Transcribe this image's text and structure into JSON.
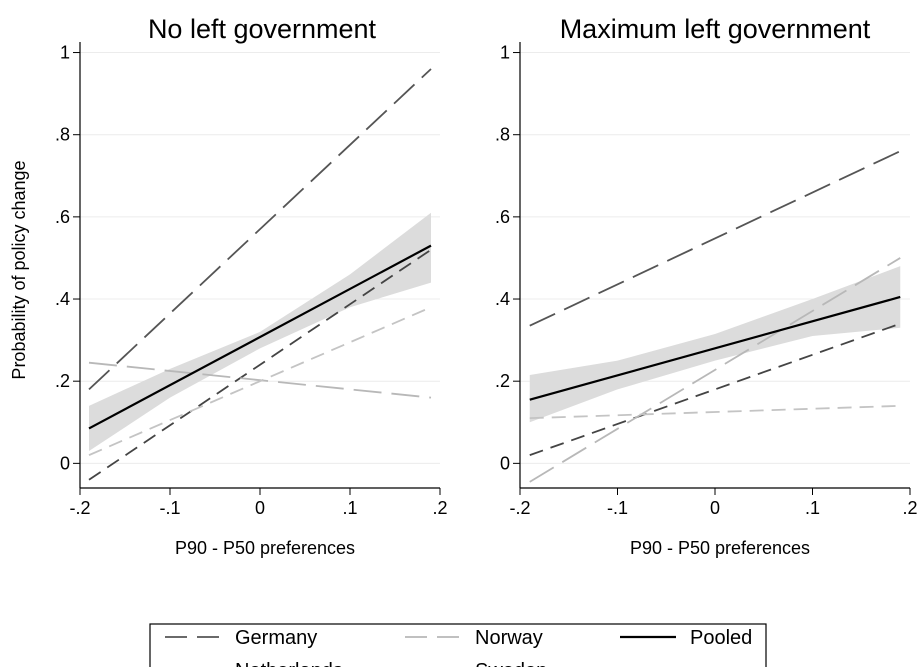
{
  "chart_data": [
    {
      "type": "line",
      "title": "No left government",
      "xlabel": "P90 - P50 preferences",
      "ylabel": "Probability of policy change",
      "xlim": [
        -0.2,
        0.2
      ],
      "ylim": [
        -0.06,
        1.05
      ],
      "xticks": [
        "-.2",
        "-.1",
        "0",
        ".1",
        ".2"
      ],
      "yticks": [
        "0",
        ".2",
        ".4",
        ".6",
        ".8",
        "1"
      ],
      "grid": true,
      "series": [
        {
          "name": "Germany",
          "x": [
            -0.19,
            0.19
          ],
          "y": [
            0.18,
            0.96
          ]
        },
        {
          "name": "Netherlands",
          "x": [
            -0.19,
            0.19
          ],
          "y": [
            -0.04,
            0.52
          ]
        },
        {
          "name": "Norway",
          "x": [
            -0.19,
            0.19
          ],
          "y": [
            0.245,
            0.16
          ]
        },
        {
          "name": "Sweden",
          "x": [
            -0.19,
            0.19
          ],
          "y": [
            0.02,
            0.38
          ]
        },
        {
          "name": "Pooled",
          "x": [
            -0.19,
            0.19
          ],
          "y": [
            0.085,
            0.53
          ]
        }
      ],
      "confidence_band": {
        "x": [
          -0.19,
          -0.1,
          0,
          0.1,
          0.19
        ],
        "lower": [
          0.03,
          0.16,
          0.28,
          0.38,
          0.44
        ],
        "upper": [
          0.14,
          0.23,
          0.32,
          0.46,
          0.61
        ]
      }
    },
    {
      "type": "line",
      "title": "Maximum left government",
      "xlabel": "P90 - P50 preferences",
      "ylabel": "",
      "xlim": [
        -0.2,
        0.2
      ],
      "ylim": [
        -0.06,
        1.05
      ],
      "xticks": [
        "-.2",
        "-.1",
        "0",
        ".1",
        ".2"
      ],
      "yticks": [
        "0",
        ".2",
        ".4",
        ".6",
        ".8",
        "1"
      ],
      "grid": true,
      "series": [
        {
          "name": "Germany",
          "x": [
            -0.19,
            0.19
          ],
          "y": [
            0.335,
            0.76
          ]
        },
        {
          "name": "Netherlands",
          "x": [
            -0.19,
            0.19
          ],
          "y": [
            0.02,
            0.34
          ]
        },
        {
          "name": "Norway",
          "x": [
            -0.19,
            0.19
          ],
          "y": [
            -0.045,
            0.5
          ]
        },
        {
          "name": "Sweden",
          "x": [
            -0.19,
            0.19
          ],
          "y": [
            0.11,
            0.14
          ]
        },
        {
          "name": "Pooled",
          "x": [
            -0.19,
            0.19
          ],
          "y": [
            0.155,
            0.405
          ]
        }
      ],
      "confidence_band": {
        "x": [
          -0.19,
          -0.1,
          0,
          0.1,
          0.19
        ],
        "lower": [
          0.1,
          0.18,
          0.25,
          0.31,
          0.33
        ],
        "upper": [
          0.215,
          0.25,
          0.315,
          0.4,
          0.48
        ]
      }
    }
  ],
  "legend": {
    "placement": "bottom-center",
    "entries": [
      {
        "name": "Germany",
        "style": "long-dash",
        "color": "#555555"
      },
      {
        "name": "Norway",
        "style": "long-dash",
        "color": "#b8b8b8"
      },
      {
        "name": "Pooled",
        "style": "solid",
        "color": "#000000"
      },
      {
        "name": "Netherlands",
        "style": "dash",
        "color": "#444444"
      },
      {
        "name": "Sweden",
        "style": "dash",
        "color": "#c4c4c4"
      }
    ]
  },
  "colors": {
    "Germany": "#555555",
    "Netherlands": "#444444",
    "Norway": "#b8b8b8",
    "Sweden": "#c4c4c4",
    "Pooled": "#000000",
    "band": "#dcdcdc",
    "grid": "#ececec"
  }
}
